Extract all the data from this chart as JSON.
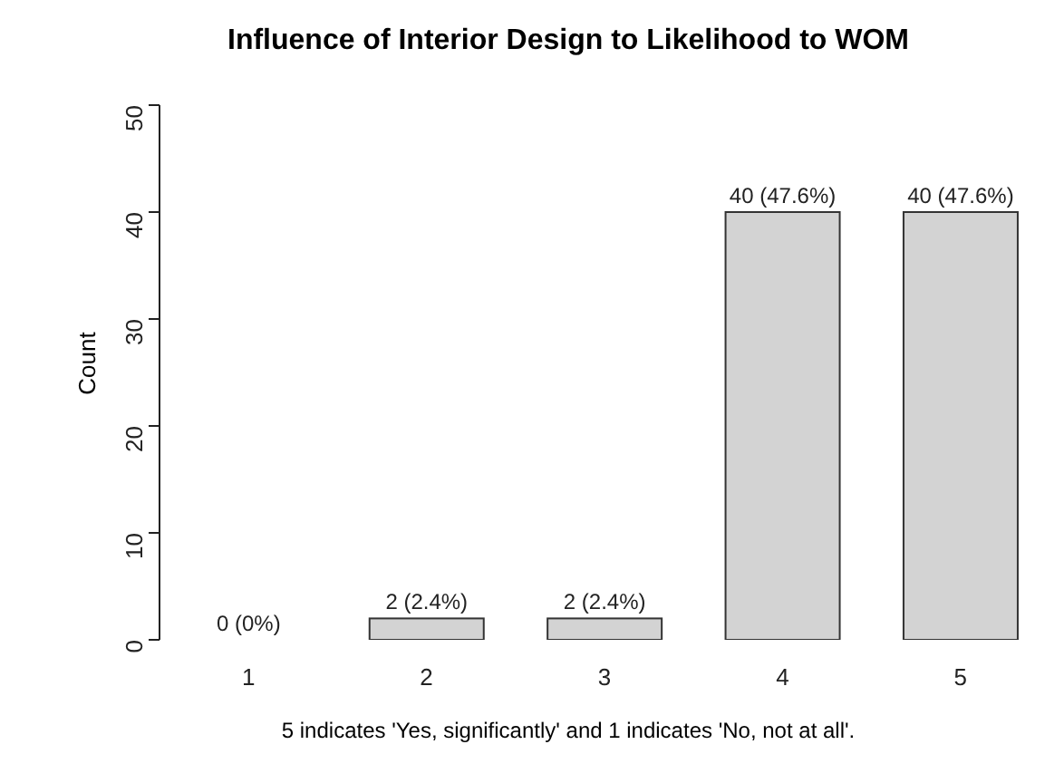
{
  "chart_data": {
    "type": "bar",
    "title": "Influence of Interior Design to Likelihood to WOM",
    "xlabel": "5 indicates 'Yes, significantly' and 1 indicates 'No, not at all'.",
    "ylabel": "Count",
    "categories": [
      "1",
      "2",
      "3",
      "4",
      "5"
    ],
    "values": [
      0,
      2,
      2,
      40,
      40
    ],
    "value_labels": [
      "0 (0%)",
      "2 (2.4%)",
      "2 (2.4%)",
      "40 (47.6%)",
      "40 (47.6%)"
    ],
    "color": "#d3d3d3",
    "ylim": [
      0,
      50
    ],
    "yticks": [
      0,
      10,
      20,
      30,
      40,
      50
    ],
    "grid": false,
    "legend": false
  }
}
